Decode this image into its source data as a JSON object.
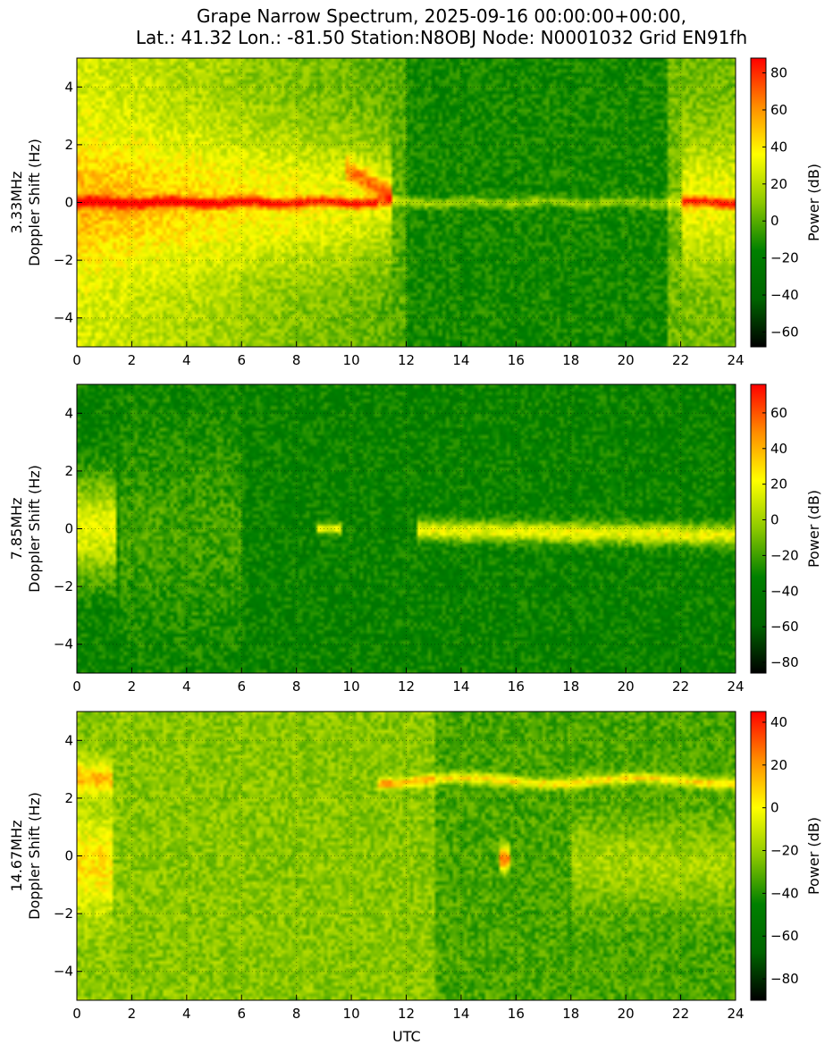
{
  "title_line1": "Grape Narrow Spectrum, 2025-09-16 00:00:00+00:00,",
  "title_line2": "Lat.: 41.32 Lon.: -81.50 Station:N8OBJ Node: N0001032 Grid EN91fh",
  "xlabel": "UTC",
  "chart_data": [
    {
      "type": "heatmap",
      "ylabel_freq": "3.33MHz",
      "ylabel": "Doppler Shift (Hz)",
      "colorbar_label": "Power (dB)",
      "xlim": [
        0,
        24
      ],
      "ylim": [
        -5,
        5
      ],
      "xticks": [
        0,
        2,
        4,
        6,
        8,
        10,
        12,
        14,
        16,
        18,
        20,
        22,
        24
      ],
      "yticks": [
        -4,
        -2,
        0,
        2,
        4
      ],
      "clim": [
        -68,
        88
      ],
      "cticks": [
        -60,
        -40,
        -20,
        0,
        20,
        40,
        60,
        80
      ],
      "grid": true
    },
    {
      "type": "heatmap",
      "ylabel_freq": "7.85MHz",
      "ylabel": "Doppler Shift (Hz)",
      "colorbar_label": "Power (dB)",
      "xlim": [
        0,
        24
      ],
      "ylim": [
        -5,
        5
      ],
      "xticks": [
        0,
        2,
        4,
        6,
        8,
        10,
        12,
        14,
        16,
        18,
        20,
        22,
        24
      ],
      "yticks": [
        -4,
        -2,
        0,
        2,
        4
      ],
      "clim": [
        -86,
        76
      ],
      "cticks": [
        -80,
        -60,
        -40,
        -20,
        0,
        20,
        40,
        60
      ],
      "grid": true
    },
    {
      "type": "heatmap",
      "ylabel_freq": "14.67MHz",
      "ylabel": "Doppler Shift (Hz)",
      "colorbar_label": "Power (dB)",
      "xlim": [
        0,
        24
      ],
      "ylim": [
        -5,
        5
      ],
      "xticks": [
        0,
        2,
        4,
        6,
        8,
        10,
        12,
        14,
        16,
        18,
        20,
        22,
        24
      ],
      "yticks": [
        -4,
        -2,
        0,
        2,
        4
      ],
      "clim": [
        -90,
        45
      ],
      "cticks": [
        -80,
        -60,
        -40,
        -20,
        0,
        20,
        40
      ],
      "grid": true
    }
  ],
  "colors": {
    "cmap": [
      "#000000",
      "#006400",
      "#008000",
      "#8cc800",
      "#ffff00",
      "#ff8c00",
      "#ff0000"
    ]
  }
}
